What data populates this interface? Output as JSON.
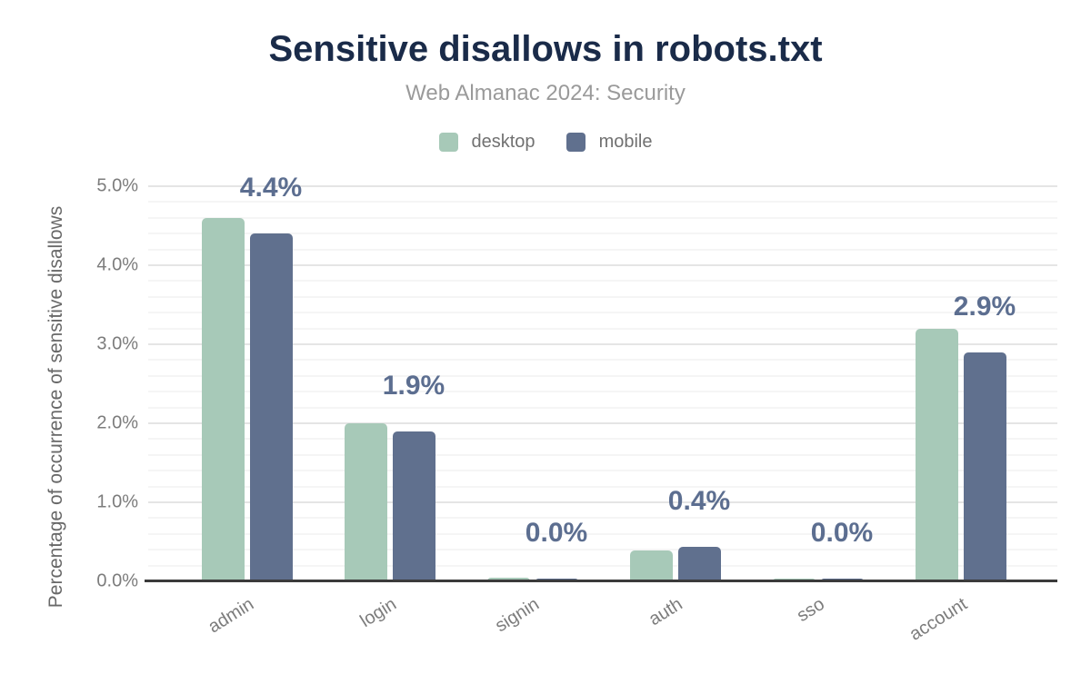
{
  "title": "Sensitive disallows in robots.txt",
  "subtitle": "Web Almanac 2024: Security",
  "legend": {
    "items": [
      {
        "label": "desktop",
        "color": "#a7c9b8"
      },
      {
        "label": "mobile",
        "color": "#60708e"
      }
    ]
  },
  "colors": {
    "title_navy": "#1a2b49",
    "desktop_green": "#a7c9b8",
    "mobile_slate": "#60708e",
    "bar_label_slate": "#5c6e90",
    "axis_line": "#3b3b3b"
  },
  "chart_data": {
    "type": "bar",
    "title": "Sensitive disallows in robots.txt",
    "subtitle": "Web Almanac 2024: Security",
    "categories": [
      "admin",
      "login",
      "signin",
      "auth",
      "sso",
      "account"
    ],
    "series": [
      {
        "name": "desktop",
        "color": "#a7c9b8",
        "values": [
          4.6,
          2.0,
          0.05,
          0.39,
          0.03,
          3.2
        ]
      },
      {
        "name": "mobile",
        "color": "#60708e",
        "values": [
          4.4,
          1.9,
          0.03,
          0.44,
          0.03,
          2.9
        ]
      }
    ],
    "bar_labels": {
      "series": "mobile",
      "texts": [
        "4.4%",
        "1.9%",
        "0.0%",
        "0.4%",
        "0.0%",
        "2.9%"
      ]
    },
    "xlabel": "",
    "ylabel": "Percentage of occurrence of sensitive disallows",
    "ylim": [
      0,
      5
    ],
    "yticks": [
      "0.0%",
      "1.0%",
      "2.0%",
      "3.0%",
      "4.0%",
      "5.0%"
    ],
    "grid": {
      "major_step": 1.0,
      "minor_step": 0.2,
      "legend_position": "top"
    }
  }
}
